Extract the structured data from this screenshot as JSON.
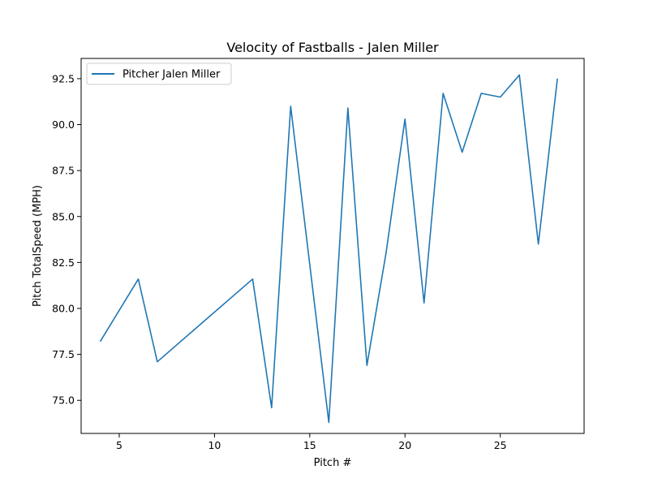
{
  "chart_data": {
    "type": "line",
    "title": "Velocity of Fastballs - Jalen Miller",
    "xlabel": "Pitch #",
    "ylabel": "Pitch TotalSpeed (MPH)",
    "xlim": [
      3,
      29.4
    ],
    "ylim": [
      73.2,
      93.6
    ],
    "xticks": [
      5,
      10,
      15,
      20,
      25
    ],
    "yticks": [
      75.0,
      77.5,
      80.0,
      82.5,
      85.0,
      87.5,
      90.0,
      92.5
    ],
    "ytick_labels": [
      "75.0",
      "77.5",
      "80.0",
      "82.5",
      "85.0",
      "87.5",
      "90.0",
      "92.5"
    ],
    "legend_position": "upper-left",
    "grid": false,
    "series": [
      {
        "name": "Pitcher Jalen Miller",
        "color": "#1f77b4",
        "x": [
          4,
          6,
          7,
          12,
          13,
          14,
          16,
          17,
          18,
          19,
          20,
          21,
          22,
          23,
          24,
          25,
          26,
          27,
          28
        ],
        "y": [
          78.2,
          81.6,
          77.1,
          81.6,
          74.6,
          91.0,
          73.8,
          90.9,
          76.9,
          83.0,
          90.3,
          80.3,
          91.7,
          88.5,
          91.7,
          91.5,
          92.7,
          83.5,
          92.5
        ]
      }
    ]
  }
}
